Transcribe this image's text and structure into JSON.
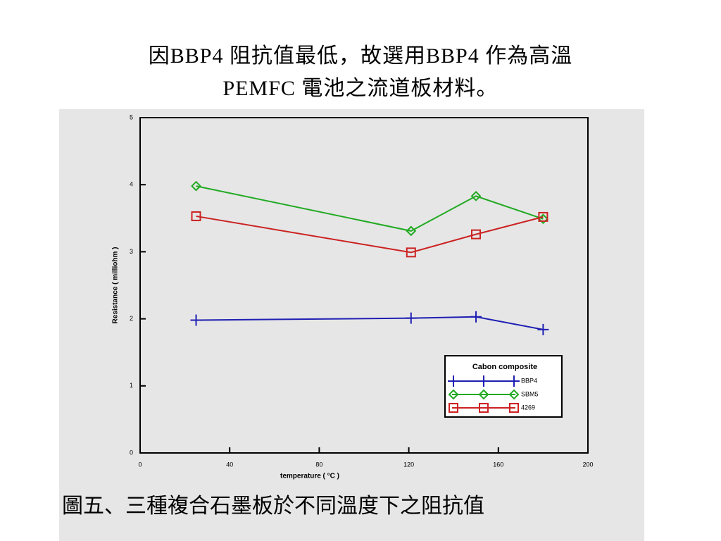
{
  "slide": {
    "title_lines": [
      "因BBP4 阻抗值最低，故選用BBP4 作為高溫",
      "PEMFC 電池之流道板材料。"
    ],
    "caption": "圖五、三種複合石墨板於不同溫度下之阻抗值"
  },
  "chart_data": {
    "type": "line",
    "x_label": "temperature ( °C )",
    "y_label": "Resistance ( milliohm )",
    "x": [
      25,
      121,
      150,
      180
    ],
    "series": [
      {
        "name": "BBP4",
        "color": "#1f1fb4",
        "marker": "plus",
        "values": [
          1.98,
          2.01,
          2.03,
          1.84
        ]
      },
      {
        "name": "SBM5",
        "color": "#22aa22",
        "marker": "diamond",
        "values": [
          3.98,
          3.31,
          3.83,
          3.49
        ]
      },
      {
        "name": "4269",
        "color": "#cc2222",
        "marker": "square",
        "values": [
          3.53,
          2.99,
          3.26,
          3.52
        ]
      }
    ],
    "legend_title": "Cabon composite",
    "legend": "lower right",
    "xlim": [
      0,
      200
    ],
    "xticks": [
      0,
      40,
      80,
      120,
      160,
      200
    ],
    "ylim": [
      0,
      5
    ],
    "yticks": [
      0,
      1,
      2,
      3,
      4,
      5
    ]
  }
}
